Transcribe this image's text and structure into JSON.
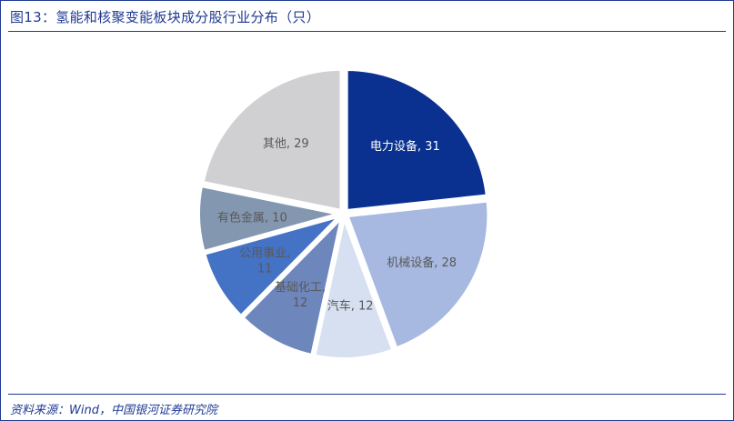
{
  "header": {
    "title": "图13：氢能和核聚变能板块成分股行业分布（只）"
  },
  "footer": {
    "source": "资料来源：Wind，中国银河证券研究院"
  },
  "chart_data": {
    "type": "pie",
    "title": "",
    "start_angle_deg": 0,
    "direction": "clockwise",
    "slices": [
      {
        "label": "电力设备",
        "value": 31,
        "color": "#0a318f",
        "text_color": "#ffffff",
        "label_lines": [
          "电力设备, 31"
        ]
      },
      {
        "label": "机械设备",
        "value": 28,
        "color": "#a7b8e1",
        "text_color": "#595959",
        "label_lines": [
          "机械设备, 28"
        ]
      },
      {
        "label": "汽车",
        "value": 12,
        "color": "#d6e0f1",
        "text_color": "#595959",
        "label_lines": [
          "汽车, 12"
        ]
      },
      {
        "label": "基础化工",
        "value": 12,
        "color": "#6d86bc",
        "text_color": "#595959",
        "label_lines": [
          "基础化工,",
          "12"
        ]
      },
      {
        "label": "公用事业",
        "value": 11,
        "color": "#4472c4",
        "text_color": "#595959",
        "label_lines": [
          "公用事业,",
          "11"
        ]
      },
      {
        "label": "有色金属",
        "value": 10,
        "color": "#8497b0",
        "text_color": "#595959",
        "label_lines": [
          "有色金属, 10"
        ]
      },
      {
        "label": "其他",
        "value": 29,
        "color": "#d0cfd2",
        "text_color": "#595959",
        "label_lines": [
          "其他, 29"
        ]
      }
    ]
  }
}
